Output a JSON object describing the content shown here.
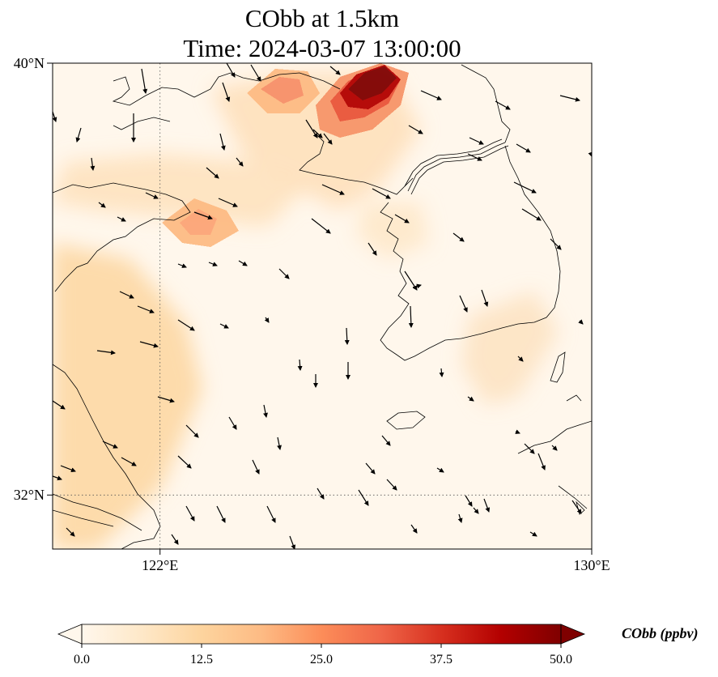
{
  "figure": {
    "title_line1": "CObb at 1.5km",
    "title_line2": "Time: 2024-03-07 13:00:00"
  },
  "map": {
    "lat_ticks": [
      "40°N",
      "32°N"
    ],
    "lon_ticks": [
      "122°E",
      "130°E"
    ],
    "extent": {
      "lon": [
        120,
        130
      ],
      "lat": [
        31,
        40
      ]
    },
    "gridlines": {
      "lon": [
        122
      ],
      "lat": [
        32
      ]
    }
  },
  "colorbar": {
    "label": "CObb (ppbv)",
    "ticks": [
      "0.0",
      "12.5",
      "25.0",
      "37.5",
      "50.0"
    ],
    "range": [
      0,
      50
    ],
    "extend": "both",
    "colormap": "OrRd",
    "colors": [
      "#fff7ec",
      "#fee8c8",
      "#fdd49e",
      "#fdbb84",
      "#fc8d59",
      "#ef6548",
      "#d7301f",
      "#b30000",
      "#7f0000"
    ]
  },
  "chart_data": {
    "type": "heatmap",
    "title": "CObb at 1.5km\nTime: 2024-03-07 13:00:00",
    "units": "ppbv",
    "value_range": [
      0,
      50
    ],
    "field_estimates": [
      {
        "lon": 126.2,
        "lat": 39.7,
        "value": 50
      },
      {
        "lon": 125.6,
        "lat": 39.3,
        "value": 38
      },
      {
        "lon": 124.4,
        "lat": 39.6,
        "value": 27
      },
      {
        "lon": 123.0,
        "lat": 36.5,
        "value": 22
      },
      {
        "lon": 121.0,
        "lat": 34.5,
        "value": 13
      },
      {
        "lon": 121.5,
        "lat": 33.5,
        "value": 12
      },
      {
        "lon": 120.3,
        "lat": 33.2,
        "value": 13
      },
      {
        "lon": 128.8,
        "lat": 34.6,
        "value": 7
      },
      {
        "lon": 126.0,
        "lat": 36.8,
        "value": 6
      },
      {
        "lon": 127.0,
        "lat": 34.5,
        "value": 2
      }
    ]
  }
}
